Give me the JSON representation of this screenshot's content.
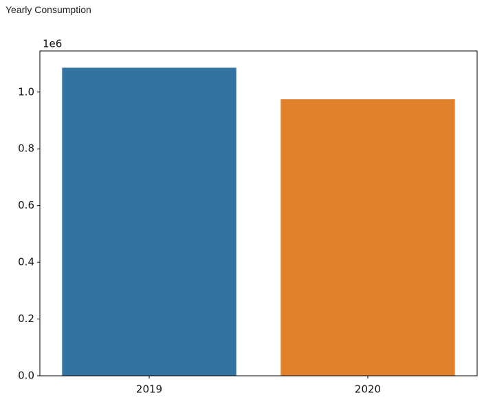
{
  "header": {
    "title": "Yearly Consumption"
  },
  "chart_data": {
    "type": "bar",
    "categories": [
      "2019",
      "2020"
    ],
    "values": [
      1087000,
      976000
    ],
    "colors": [
      "#3274a1",
      "#e1812c"
    ],
    "ylim": [
      0,
      1145000
    ],
    "yticks": [
      {
        "value": 0,
        "label": "0.0"
      },
      {
        "value": 200000,
        "label": "0.2"
      },
      {
        "value": 400000,
        "label": "0.4"
      },
      {
        "value": 600000,
        "label": "0.6"
      },
      {
        "value": 800000,
        "label": "0.8"
      },
      {
        "value": 1000000,
        "label": "1.0"
      }
    ],
    "y_offset_label": "1e6",
    "grid": false
  }
}
